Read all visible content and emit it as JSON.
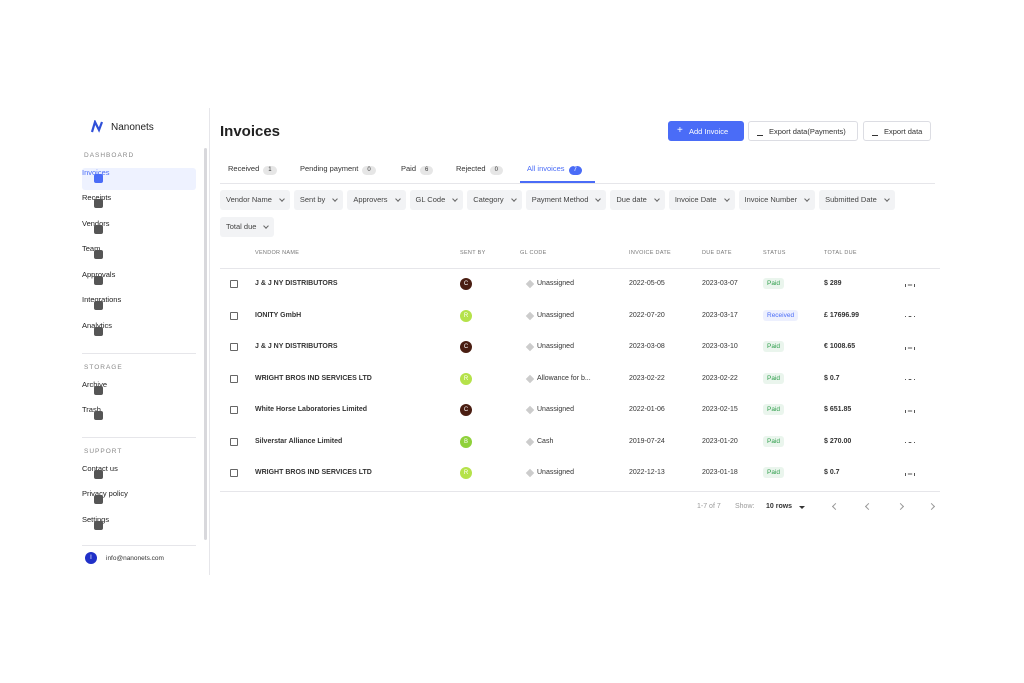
{
  "brand": "Nanonets",
  "sidebar": {
    "sections": [
      {
        "label": "DASHBOARD",
        "items": [
          "Invoices",
          "Receipts",
          "Vendors",
          "Team",
          "Approvals",
          "Integrations",
          "Analytics"
        ]
      },
      {
        "label": "STORAGE",
        "items": [
          "Archive",
          "Trash"
        ]
      },
      {
        "label": "SUPPORT",
        "items": [
          "Contact us",
          "Privacy policy",
          "Settings"
        ]
      }
    ],
    "user": {
      "initial": "I",
      "email": "info@nanonets.com"
    }
  },
  "header": {
    "title": "Invoices",
    "buttons": [
      "Add Invoice",
      "Export data(Payments)",
      "Export data"
    ]
  },
  "tabs": [
    {
      "label": "Received",
      "count": 1
    },
    {
      "label": "Pending payment",
      "count": 0
    },
    {
      "label": "Paid",
      "count": 6
    },
    {
      "label": "Rejected",
      "count": 0
    },
    {
      "label": "All invoices",
      "count": 7,
      "active": true
    }
  ],
  "filters": [
    "Vendor Name",
    "Sent by",
    "Approvers",
    "GL Code",
    "Category",
    "Payment Method",
    "Due date",
    "Invoice Date",
    "Invoice Number",
    "Submitted Date",
    "Total due"
  ],
  "table": {
    "columns": [
      "VENDOR NAME",
      "SENT BY",
      "GL CODE",
      "INVOICE DATE",
      "DUE DATE",
      "STATUS",
      "TOTAL DUE"
    ],
    "rows": [
      [
        "J & J NY DISTRIBUTORS",
        "C",
        "Unassigned",
        "2022-05-05",
        "2023-03-07",
        "Paid",
        "$ 289"
      ],
      [
        "IONITY GmbH",
        "R",
        "Unassigned",
        "2022-07-20",
        "2023-03-17",
        "Received",
        "£ 17696.99"
      ],
      [
        "J & J NY DISTRIBUTORS",
        "C",
        "Unassigned",
        "2023-03-08",
        "2023-03-10",
        "Paid",
        "€ 1008.65"
      ],
      [
        "WRIGHT BROS IND SERVICES LTD",
        "R",
        "Allowance for b...",
        "2023-02-22",
        "2023-02-22",
        "Paid",
        "$ 0.7"
      ],
      [
        "White Horse Laboratories Limited",
        "C",
        "Unassigned",
        "2022-01-06",
        "2023-02-15",
        "Paid",
        "$ 651.85"
      ],
      [
        "Silverstar Alliance Limited",
        "B",
        "Cash",
        "2019-07-24",
        "2023-01-20",
        "Paid",
        "$ 270.00"
      ],
      [
        "WRIGHT BROS IND SERVICES LTD",
        "R",
        "Unassigned",
        "2022-12-13",
        "2023-01-18",
        "Paid",
        "$ 0.7"
      ]
    ],
    "sender_colors": [
      "#4a1e12",
      "#b5e24a",
      "#4a1e12",
      "#b5e24a",
      "#4a1e12",
      "#8fd13a",
      "#b5e24a"
    ],
    "status_colors": [
      "#2e9d4a",
      "#4a6cf7",
      "#2e9d4a",
      "#2e9d4a",
      "#2e9d4a",
      "#2e9d4a",
      "#2e9d4a"
    ]
  },
  "pagination": {
    "range": "1-7 of 7",
    "show_label": "Show:",
    "rows": "10 rows"
  }
}
